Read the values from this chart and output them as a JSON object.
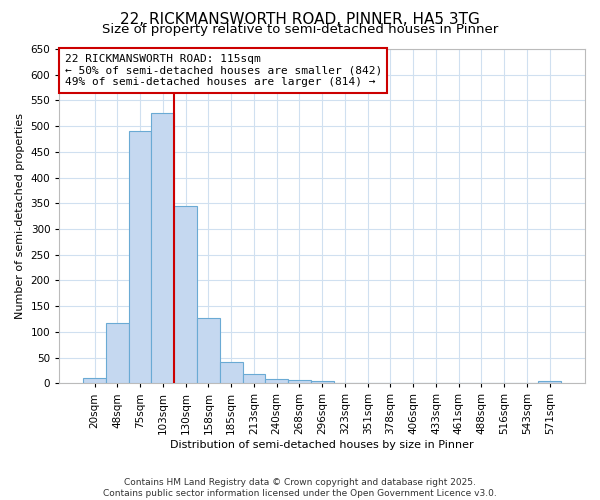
{
  "title1": "22, RICKMANSWORTH ROAD, PINNER, HA5 3TG",
  "title2": "Size of property relative to semi-detached houses in Pinner",
  "xlabel": "Distribution of semi-detached houses by size in Pinner",
  "ylabel": "Number of semi-detached properties",
  "bar_labels": [
    "20sqm",
    "48sqm",
    "75sqm",
    "103sqm",
    "130sqm",
    "158sqm",
    "185sqm",
    "213sqm",
    "240sqm",
    "268sqm",
    "296sqm",
    "323sqm",
    "351sqm",
    "378sqm",
    "406sqm",
    "433sqm",
    "461sqm",
    "488sqm",
    "516sqm",
    "543sqm",
    "571sqm"
  ],
  "bar_values": [
    10,
    118,
    490,
    525,
    345,
    127,
    42,
    19,
    8,
    7,
    4,
    1,
    1,
    0,
    0,
    0,
    0,
    0,
    0,
    0,
    5
  ],
  "bar_color": "#c5d8f0",
  "bar_edge_color": "#6aaad4",
  "vline_x": 3.5,
  "vline_color": "#cc0000",
  "annotation_title": "22 RICKMANSWORTH ROAD: 115sqm",
  "annotation_line1": "← 50% of semi-detached houses are smaller (842)",
  "annotation_line2": "49% of semi-detached houses are larger (814) →",
  "annotation_box_color": "#cc0000",
  "ylim": [
    0,
    650
  ],
  "yticks": [
    0,
    50,
    100,
    150,
    200,
    250,
    300,
    350,
    400,
    450,
    500,
    550,
    600,
    650
  ],
  "footer1": "Contains HM Land Registry data © Crown copyright and database right 2025.",
  "footer2": "Contains public sector information licensed under the Open Government Licence v3.0.",
  "bg_color": "#ffffff",
  "grid_color": "#d0e0f0",
  "title1_fontsize": 11,
  "title2_fontsize": 9.5,
  "annotation_fontsize": 8.0,
  "axis_label_fontsize": 8.0,
  "tick_fontsize": 7.5,
  "footer_fontsize": 6.5
}
